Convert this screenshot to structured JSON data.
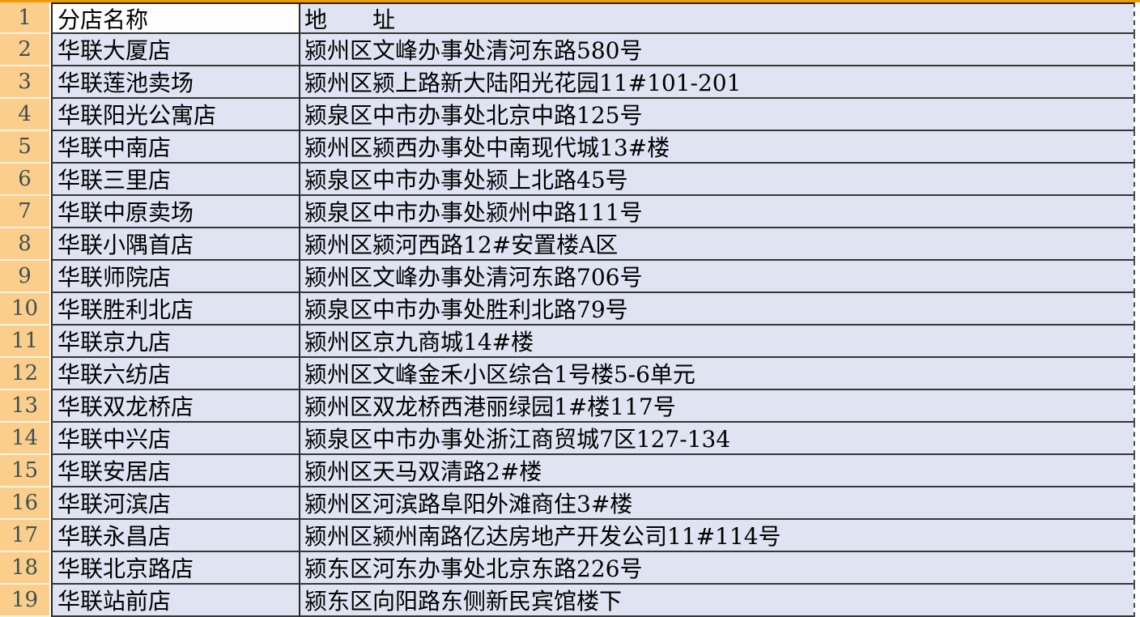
{
  "table": {
    "header_row_number": "1",
    "columns": {
      "name_header": "分店名称",
      "address_header": "地　　址"
    },
    "rows": [
      {
        "num": "2",
        "name": "华联大厦店",
        "address": "颍州区文峰办事处清河东路580号"
      },
      {
        "num": "3",
        "name": "华联莲池卖场",
        "address": "颍州区颍上路新大陆阳光花园11#101-201"
      },
      {
        "num": "4",
        "name": "华联阳光公寓店",
        "address": "颍泉区中市办事处北京中路125号"
      },
      {
        "num": "5",
        "name": "华联中南店",
        "address": "颍州区颍西办事处中南现代城13#楼"
      },
      {
        "num": "6",
        "name": "华联三里店",
        "address": "颍泉区中市办事处颍上北路45号"
      },
      {
        "num": "7",
        "name": "华联中原卖场",
        "address": "颍泉区中市办事处颍州中路111号"
      },
      {
        "num": "8",
        "name": "华联小隅首店",
        "address": "颍州区颍河西路12#安置楼A区"
      },
      {
        "num": "9",
        "name": "华联师院店",
        "address": "颍州区文峰办事处清河东路706号"
      },
      {
        "num": "10",
        "name": "华联胜利北店",
        "address": "颍泉区中市办事处胜利北路79号"
      },
      {
        "num": "11",
        "name": "华联京九店",
        "address": "颍州区京九商城14#楼"
      },
      {
        "num": "12",
        "name": "华联六纺店",
        "address": "颍州区文峰金禾小区综合1号楼5-6单元"
      },
      {
        "num": "13",
        "name": "华联双龙桥店",
        "address": "颍州区双龙桥西港丽绿园1#楼117号"
      },
      {
        "num": "14",
        "name": "华联中兴店",
        "address": "颍泉区中市办事处浙江商贸城7区127-134"
      },
      {
        "num": "15",
        "name": "华联安居店",
        "address": "颍州区天马双清路2#楼"
      },
      {
        "num": "16",
        "name": "华联河滨店",
        "address": "颍州区河滨路阜阳外滩商住3#楼"
      },
      {
        "num": "17",
        "name": "华联永昌店",
        "address": "颍州区颍州南路亿达房地产开发公司11#114号"
      },
      {
        "num": "18",
        "name": "华联北京路店",
        "address": "颍东区河东办事处北京东路226号"
      },
      {
        "num": "19",
        "name": "华联站前店",
        "address": "颍东区向阳路东侧新民宾馆楼下"
      }
    ],
    "colors": {
      "row_header_fill": "#fbce8c",
      "cell_fill": "#e0e4f2",
      "header_name_cell_fill": "#fefefe",
      "top_strip": "#ee9a0d",
      "border": "#262626",
      "row_number_text": "#3e5152",
      "cell_text": "#000000"
    }
  }
}
